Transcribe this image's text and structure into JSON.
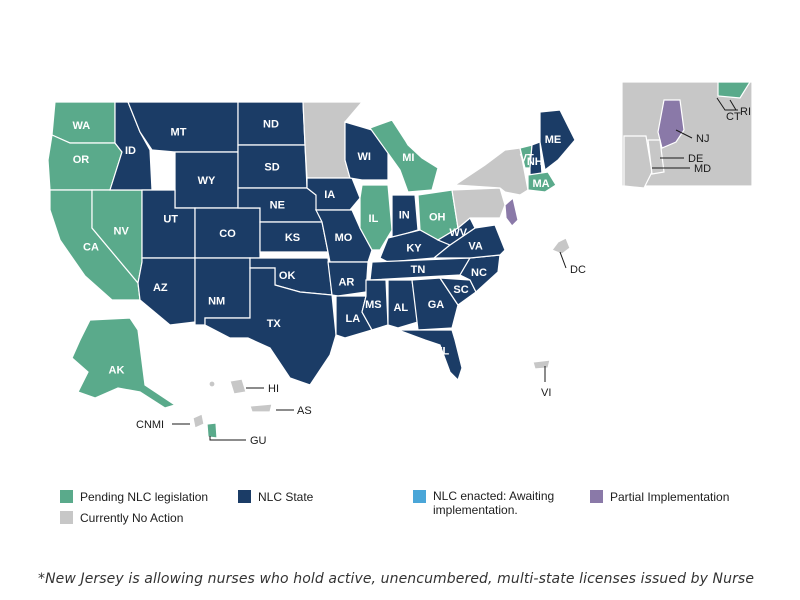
{
  "title_text": "",
  "colors": {
    "pending": "#5aaa8b",
    "nlc": "#1b3c66",
    "awaiting": "#4aa6d8",
    "partial": "#8a79a8",
    "no_action": "#c7c7c7",
    "border": "#ffffff"
  },
  "states": {
    "WA": {
      "label": "WA",
      "status": "pending"
    },
    "OR": {
      "label": "OR",
      "status": "pending"
    },
    "CA": {
      "label": "CA",
      "status": "pending"
    },
    "NV": {
      "label": "NV",
      "status": "pending"
    },
    "ID": {
      "label": "ID",
      "status": "nlc"
    },
    "MT": {
      "label": "MT",
      "status": "nlc"
    },
    "WY": {
      "label": "WY",
      "status": "nlc"
    },
    "UT": {
      "label": "UT",
      "status": "nlc"
    },
    "AZ": {
      "label": "AZ",
      "status": "nlc"
    },
    "CO": {
      "label": "CO",
      "status": "nlc"
    },
    "NM": {
      "label": "NM",
      "status": "nlc"
    },
    "ND": {
      "label": "ND",
      "status": "nlc"
    },
    "SD": {
      "label": "SD",
      "status": "nlc"
    },
    "NE": {
      "label": "NE",
      "status": "nlc"
    },
    "KS": {
      "label": "KS",
      "status": "nlc"
    },
    "OK": {
      "label": "OK",
      "status": "nlc"
    },
    "TX": {
      "label": "TX",
      "status": "nlc"
    },
    "MN": {
      "label": "",
      "status": "no_action"
    },
    "IA": {
      "label": "IA",
      "status": "nlc"
    },
    "MO": {
      "label": "MO",
      "status": "nlc"
    },
    "AR": {
      "label": "AR",
      "status": "nlc"
    },
    "LA": {
      "label": "LA",
      "status": "nlc"
    },
    "WI": {
      "label": "WI",
      "status": "nlc"
    },
    "IL": {
      "label": "IL",
      "status": "pending"
    },
    "MI": {
      "label": "MI",
      "status": "pending"
    },
    "IN": {
      "label": "IN",
      "status": "nlc"
    },
    "OH": {
      "label": "OH",
      "status": "pending"
    },
    "KY": {
      "label": "KY",
      "status": "nlc"
    },
    "TN": {
      "label": "TN",
      "status": "nlc"
    },
    "MS": {
      "label": "MS",
      "status": "nlc"
    },
    "AL": {
      "label": "AL",
      "status": "nlc"
    },
    "GA": {
      "label": "GA",
      "status": "nlc"
    },
    "FL": {
      "label": "FL",
      "status": "nlc"
    },
    "SC": {
      "label": "SC",
      "status": "nlc"
    },
    "NC": {
      "label": "NC",
      "status": "nlc"
    },
    "VA": {
      "label": "VA",
      "status": "nlc"
    },
    "WV": {
      "label": "WV",
      "status": "nlc"
    },
    "PA": {
      "label": "",
      "status": "no_action"
    },
    "NY": {
      "label": "",
      "status": "no_action"
    },
    "VT": {
      "label": "VT",
      "status": "pending"
    },
    "NH": {
      "label": "NH",
      "status": "nlc"
    },
    "ME": {
      "label": "ME",
      "status": "nlc"
    },
    "MA": {
      "label": "MA",
      "status": "pending"
    },
    "NJ": {
      "label": "",
      "status": "partial"
    },
    "AK": {
      "label": "AK",
      "status": "pending"
    },
    "HI": {
      "label": "",
      "status": "no_action"
    },
    "CNMI": {
      "label": "",
      "status": "no_action"
    },
    "GU": {
      "label": "",
      "status": "pending"
    },
    "AS": {
      "label": "",
      "status": "no_action"
    },
    "VI": {
      "label": "",
      "status": "no_action"
    },
    "DC": {
      "label": "",
      "status": "no_action"
    }
  },
  "callouts": {
    "HI": "HI",
    "AS": "AS",
    "CNMI": "CNMI",
    "GU": "GU",
    "VI": "VI",
    "DC": "DC",
    "RI": "RI",
    "CT": "CT",
    "NJ": "NJ",
    "DE": "DE",
    "MD": "MD"
  },
  "legend": {
    "pending": "Pending NLC legislation",
    "nlc": "NLC State",
    "awaiting": "NLC enacted: Awaiting implementation.",
    "partial": "Partial Implementation",
    "no_action": "Currently No Action"
  },
  "footnote": "*New Jersey is allowing nurses who hold active, unencumbered, multi-state licenses issued by Nurse"
}
